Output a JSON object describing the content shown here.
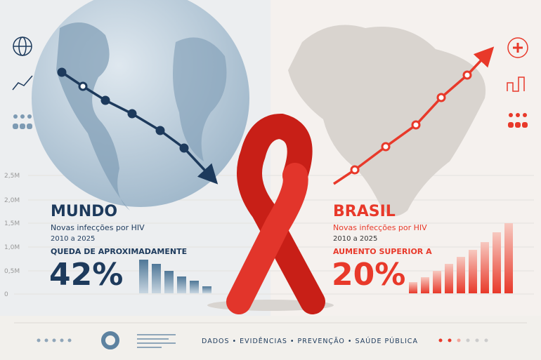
{
  "axis_labels": [
    "2,5M",
    "2,0M",
    "1,5M",
    "1,0M",
    "0,5M",
    "0"
  ],
  "world": {
    "title": "MUNDO",
    "subtitle": "Novas infecções por HIV",
    "period": "2010 a 2025",
    "caption": "QUEDA DE APROXIMADAMENTE",
    "stat": "42%"
  },
  "brazil": {
    "title": "BRASIL",
    "subtitle": "Novas infecções por HIV",
    "period": "2010 a 2025",
    "caption": "AUMENTO SUPERIOR A",
    "stat": "20%"
  },
  "footer": "DADOS • EVIDÊNCIAS • PREVENÇÃO • SAÚDE PÚBLICA"
}
